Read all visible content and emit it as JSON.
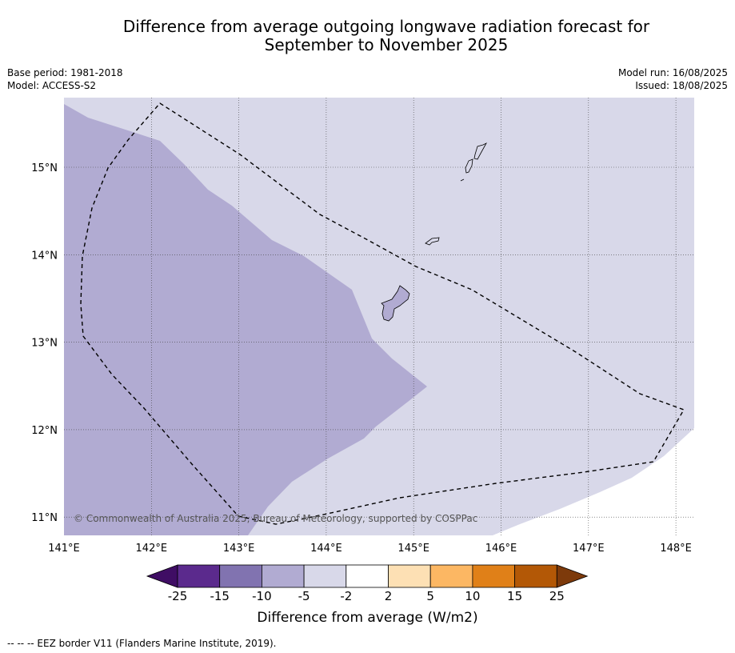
{
  "title_line1": "Difference from average outgoing longwave radiation forecast for",
  "title_line2": "September to November 2025",
  "base_period": "Base period: 1981-2018",
  "model": "Model: ACCESS-S2",
  "model_run": "Model run: 16/08/2025",
  "issued": "Issued: 18/08/2025",
  "copyright": "© Commonwealth of Australia 2025, Bureau of Meteorology, supported by COSPPac",
  "footnote": "--  --  -- EEZ border V11 (Flanders Marine Institute, 2019).",
  "map": {
    "lon_range": [
      141.0,
      148.2
    ],
    "lat_range": [
      10.8,
      15.8
    ],
    "lon_ticks": [
      {
        "value": 141,
        "label": "141°E"
      },
      {
        "value": 142,
        "label": "142°E"
      },
      {
        "value": 143,
        "label": "143°E"
      },
      {
        "value": 144,
        "label": "144°E"
      },
      {
        "value": 145,
        "label": "145°E"
      },
      {
        "value": 146,
        "label": "146°E"
      },
      {
        "value": 147,
        "label": "147°E"
      },
      {
        "value": 148,
        "label": "148°E"
      }
    ],
    "lat_ticks": [
      {
        "value": 15,
        "label": "15°N"
      },
      {
        "value": 14,
        "label": "14°N"
      },
      {
        "value": 13,
        "label": "13°N"
      },
      {
        "value": 12,
        "label": "12°N"
      },
      {
        "value": 11,
        "label": "11°N"
      }
    ],
    "categories": [
      {
        "range": "-5 to -2",
        "color": "#d8d8e9"
      },
      {
        "range": "-10 to -5",
        "color": "#b1abd2"
      }
    ]
  },
  "colorbar": {
    "label": "Difference from average (W/m2)",
    "colors": [
      "#3f0d64",
      "#5b2a8d",
      "#8173b0",
      "#b1abd2",
      "#d8d8e9",
      "#ffffff",
      "#fde0b4",
      "#fcb763",
      "#e08018",
      "#b35806",
      "#7d3a0b"
    ],
    "ticks": [
      "-25",
      "-15",
      "-10",
      "-5",
      "-2",
      "2",
      "5",
      "10",
      "15",
      "25"
    ]
  }
}
